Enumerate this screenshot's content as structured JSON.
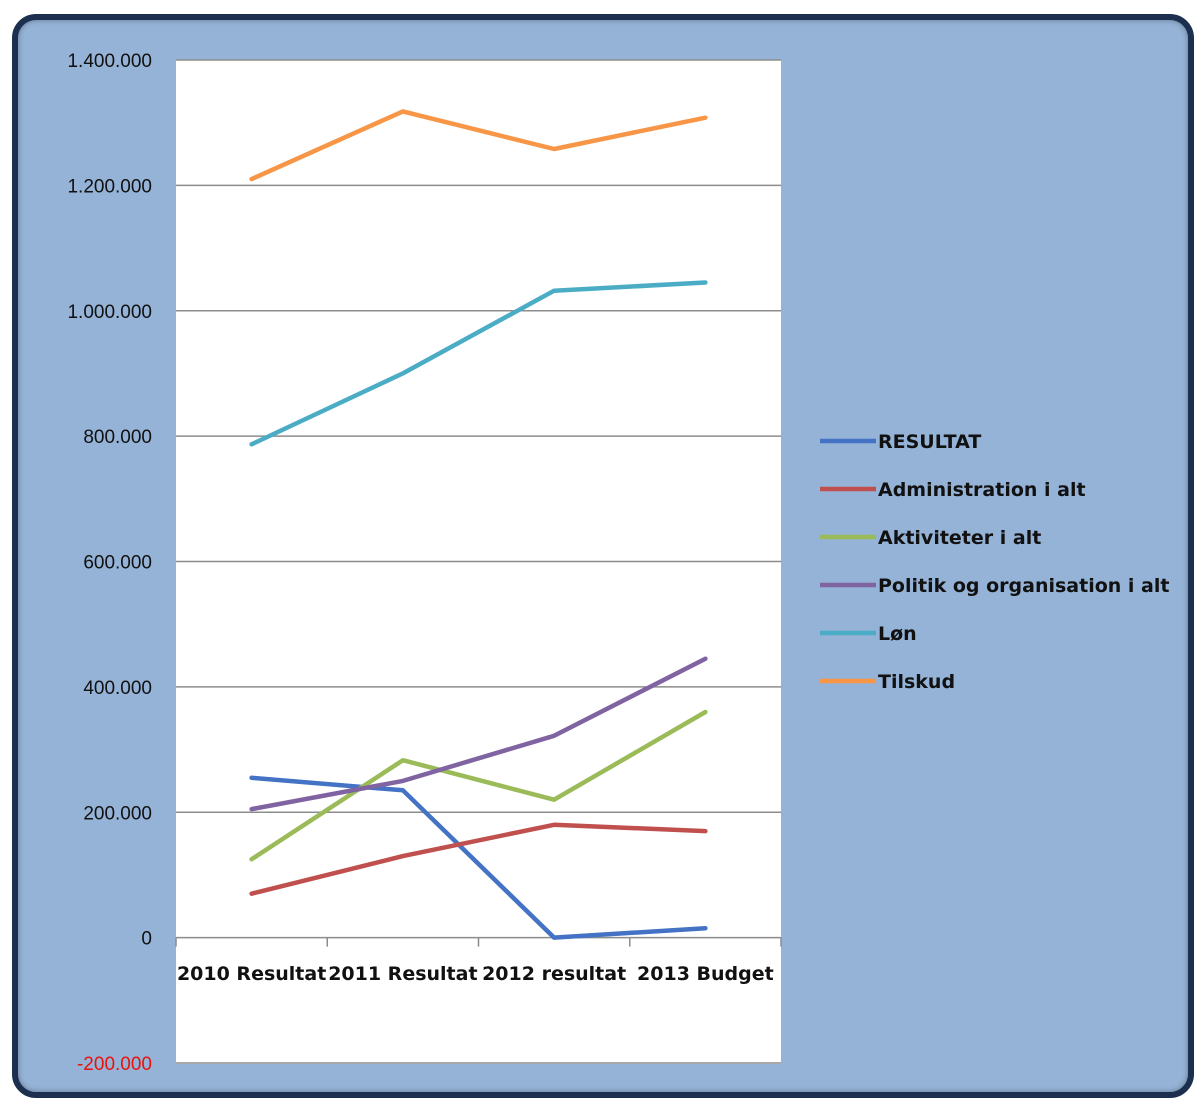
{
  "chart_data": {
    "type": "line",
    "categories": [
      "2010 Resultat",
      "2011 Resultat",
      "2012 resultat",
      "2013 Budget"
    ],
    "series": [
      {
        "name": "RESULTAT",
        "color": "#4472c4",
        "values": [
          255000,
          235000,
          0,
          15000
        ]
      },
      {
        "name": "Administration i alt",
        "color": "#c0504d",
        "values": [
          70000,
          130000,
          180000,
          170000
        ]
      },
      {
        "name": "Aktiviteter i alt",
        "color": "#9bbb59",
        "values": [
          125000,
          283000,
          220000,
          360000
        ]
      },
      {
        "name": "Politik og organisation i alt",
        "color": "#8064a2",
        "values": [
          205000,
          250000,
          322000,
          445000
        ]
      },
      {
        "name": "Løn",
        "color": "#4bacc6",
        "values": [
          787000,
          900000,
          1032000,
          1045000
        ]
      },
      {
        "name": "Tilskud",
        "color": "#f79646",
        "values": [
          1210000,
          1318000,
          1258000,
          1308000
        ]
      }
    ],
    "ylim": [
      -200000,
      1400000
    ],
    "yticks": [
      1400000,
      1200000,
      1000000,
      800000,
      600000,
      400000,
      200000,
      0,
      -200000
    ],
    "ytick_labels": [
      "1.400.000",
      "1.200.000",
      "1.000.000",
      "800.000",
      "600.000",
      "400.000",
      "200.000",
      "0",
      "-200.000"
    ],
    "negative_tick_color": "#e8130c",
    "grid": true,
    "legend_position": "right",
    "plot_background": "#ffffff",
    "frame_background": "#95b3d7"
  }
}
